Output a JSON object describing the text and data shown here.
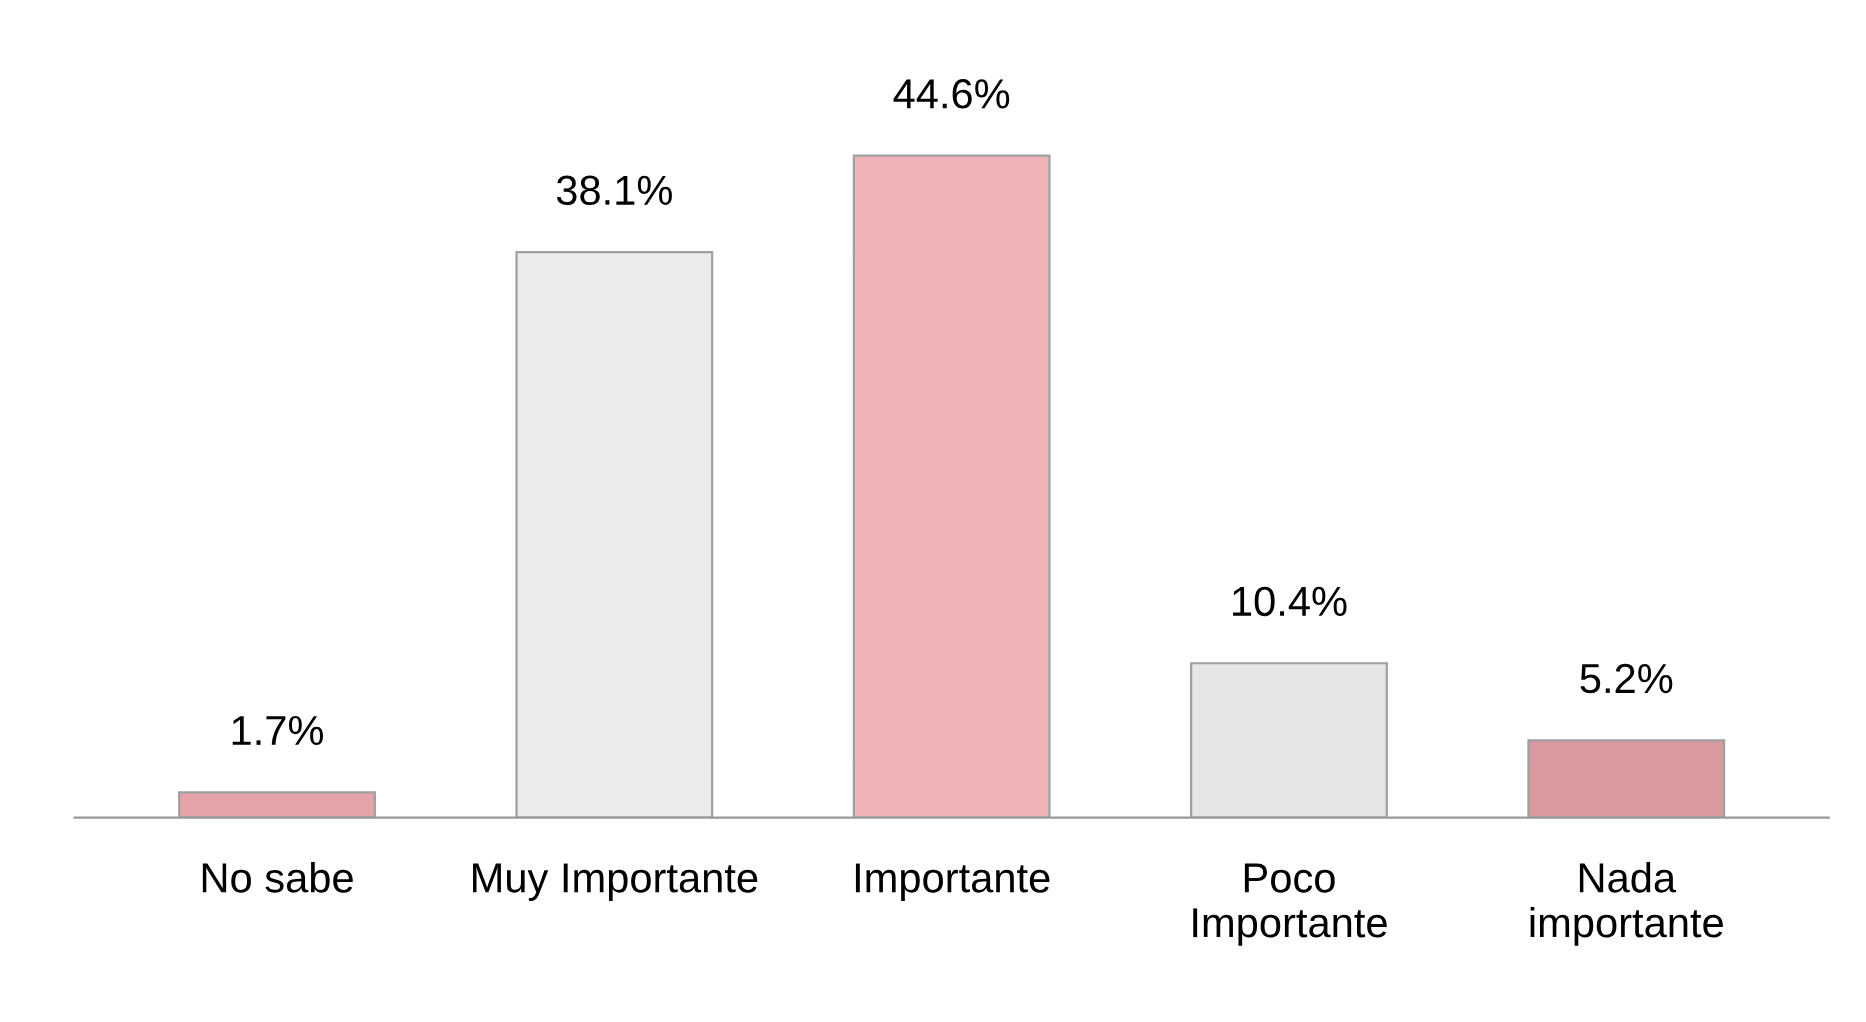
{
  "chart_data": {
    "type": "bar",
    "categories": [
      "No sabe",
      "Muy Importante",
      "Importante",
      "Poco\nImportante",
      "Nada\nimportante"
    ],
    "values": [
      1.7,
      38.1,
      44.6,
      10.4,
      5.2
    ],
    "colors": [
      "#e3a3a8",
      "#ebebeb",
      "#f0b4b8",
      "#e6e6e6",
      "#d99a9f"
    ],
    "value_labels": [
      "1.7%",
      "38.1%",
      "44.6%",
      "10.4%",
      "5.2%"
    ],
    "grid": false,
    "legend": false
  }
}
